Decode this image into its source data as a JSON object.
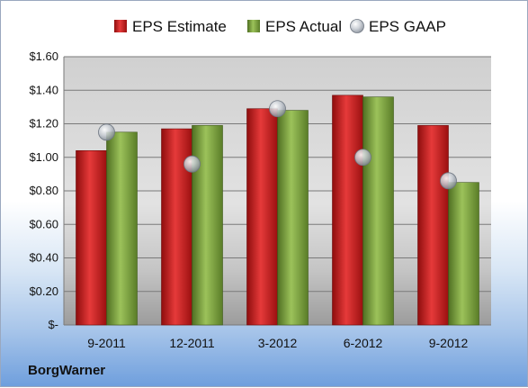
{
  "company": "BorgWarner",
  "chart_data": {
    "type": "bar",
    "categories": [
      "9-2011",
      "12-2011",
      "3-2012",
      "6-2012",
      "9-2012"
    ],
    "series": [
      {
        "name": "EPS Estimate",
        "kind": "bar",
        "color": "#d21f1f",
        "values": [
          1.04,
          1.17,
          1.29,
          1.37,
          1.19
        ]
      },
      {
        "name": "EPS Actual",
        "kind": "bar",
        "color": "#7ea33f",
        "values": [
          1.15,
          1.19,
          1.28,
          1.36,
          0.85
        ]
      },
      {
        "name": "EPS GAAP",
        "kind": "marker",
        "color": "#b5bac2",
        "values": [
          1.15,
          0.96,
          1.29,
          1.0,
          0.86
        ]
      }
    ],
    "ylim": [
      0,
      1.6
    ],
    "yticks": [
      {
        "value": 0,
        "label": "$-"
      },
      {
        "value": 0.2,
        "label": "$0.20"
      },
      {
        "value": 0.4,
        "label": "$0.40"
      },
      {
        "value": 0.6,
        "label": "$0.60"
      },
      {
        "value": 0.8,
        "label": "$0.80"
      },
      {
        "value": 1.0,
        "label": "$1.00"
      },
      {
        "value": 1.2,
        "label": "$1.20"
      },
      {
        "value": 1.4,
        "label": "$1.40"
      },
      {
        "value": 1.6,
        "label": "$1.60"
      }
    ],
    "grid": true,
    "legend_position": "top"
  }
}
